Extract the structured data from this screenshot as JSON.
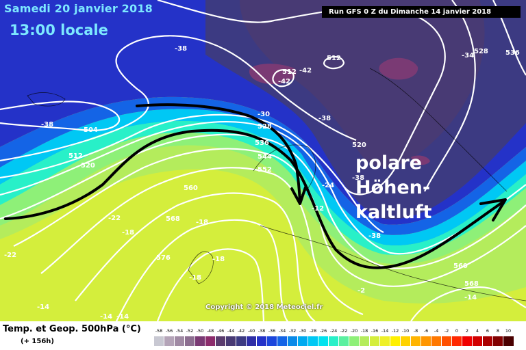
{
  "header": {
    "date": "Samedi 20 janvier 2018",
    "time": "13:00 locale",
    "run": "Run GFS 0 Z du Dimanche 14 janvier 2018"
  },
  "annotation": {
    "lines": [
      "polare",
      "Höhen-",
      "kaltluft"
    ]
  },
  "copyright": "Copyright © 2018 Meteociel.fr",
  "legend": {
    "title": "Temp. et Geop. 500hPa (°C)",
    "lead_time": "(+ 156h)",
    "scale": [
      {
        "v": "-58",
        "c": "#c8c8d2"
      },
      {
        "v": "-56",
        "c": "#b4a4b8"
      },
      {
        "v": "-54",
        "c": "#a08aa4"
      },
      {
        "v": "-52",
        "c": "#8c6e90"
      },
      {
        "v": "-50",
        "c": "#7a3a74"
      },
      {
        "v": "-48",
        "c": "#8c2c6c"
      },
      {
        "v": "-46",
        "c": "#5a3c6e"
      },
      {
        "v": "-44",
        "c": "#483a74"
      },
      {
        "v": "-42",
        "c": "#3c3a82"
      },
      {
        "v": "-40",
        "c": "#2e2ea6"
      },
      {
        "v": "-38",
        "c": "#2432c8"
      },
      {
        "v": "-36",
        "c": "#1c46dc"
      },
      {
        "v": "-34",
        "c": "#1464e6"
      },
      {
        "v": "-32",
        "c": "#0a8ae8"
      },
      {
        "v": "-30",
        "c": "#00aaf0"
      },
      {
        "v": "-28",
        "c": "#00c8f4"
      },
      {
        "v": "-26",
        "c": "#00e2ee"
      },
      {
        "v": "-24",
        "c": "#28f0c8"
      },
      {
        "v": "-22",
        "c": "#5af0a0"
      },
      {
        "v": "-20",
        "c": "#8ef078"
      },
      {
        "v": "-18",
        "c": "#b4ec5c"
      },
      {
        "v": "-16",
        "c": "#d4ee3c"
      },
      {
        "v": "-14",
        "c": "#eef028"
      },
      {
        "v": "-12",
        "c": "#fff000"
      },
      {
        "v": "-10",
        "c": "#ffd200"
      },
      {
        "v": "-8",
        "c": "#ffb400"
      },
      {
        "v": "-6",
        "c": "#ff9600"
      },
      {
        "v": "-4",
        "c": "#ff7800"
      },
      {
        "v": "-2",
        "c": "#ff5000"
      },
      {
        "v": "0",
        "c": "#ff2800"
      },
      {
        "v": "2",
        "c": "#f00000"
      },
      {
        "v": "4",
        "c": "#d20000"
      },
      {
        "v": "6",
        "c": "#aa0000"
      },
      {
        "v": "8",
        "c": "#820000"
      },
      {
        "v": "10",
        "c": "#4a0000"
      }
    ]
  },
  "geopotential_labels": [
    "504",
    "512",
    "520",
    "528",
    "536",
    "544",
    "552",
    "560",
    "568",
    "576",
    "512",
    "512",
    "528",
    "536",
    "520",
    "560",
    "568"
  ],
  "temperature_labels": [
    "-38",
    "-38",
    "-34",
    "-42",
    "-42",
    "-30",
    "-38",
    "-38",
    "-38",
    "-22",
    "-18",
    "-18",
    "-18",
    "-18",
    "-12",
    "-22",
    "-2",
    "-14",
    "-14",
    "-14",
    "-14",
    "-24"
  ]
}
